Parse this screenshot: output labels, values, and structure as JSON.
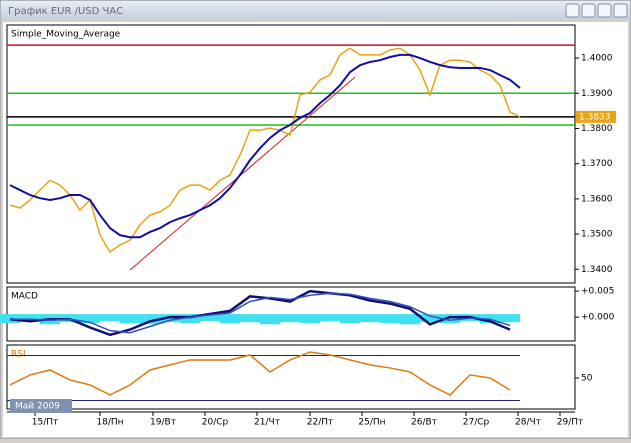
{
  "window": {
    "title": "График EUR /USD  ЧАС"
  },
  "main": {
    "label": "Simple_Moving_Average",
    "ylim": [
      1.3361,
      1.4094
    ],
    "yticks": [
      {
        "value": 1.34,
        "label": "1.3400"
      },
      {
        "value": 1.35,
        "label": "1.3500"
      },
      {
        "value": 1.36,
        "label": "1.3600"
      },
      {
        "value": 1.37,
        "label": "1.3700"
      },
      {
        "value": 1.38,
        "label": "1.3800"
      },
      {
        "value": 1.39,
        "label": "1.3900"
      },
      {
        "value": 1.4,
        "label": "1.4000"
      }
    ],
    "price": [
      1.3582,
      1.3574,
      1.3597,
      1.3625,
      1.3653,
      1.3639,
      1.3611,
      1.3568,
      1.3597,
      1.3497,
      1.3449,
      1.3469,
      1.3483,
      1.3526,
      1.3554,
      1.3563,
      1.3582,
      1.3625,
      1.3639,
      1.3639,
      1.3625,
      1.3653,
      1.3668,
      1.3724,
      1.3795,
      1.3795,
      1.3801,
      1.3795,
      1.3781,
      1.3895,
      1.3903,
      1.3938,
      1.3952,
      1.4009,
      1.4028,
      1.4009,
      1.4009,
      1.4009,
      1.4023,
      1.4028,
      1.4009,
      1.3966,
      1.3895,
      1.398,
      1.3994,
      1.3994,
      1.3989,
      1.3966,
      1.3952,
      1.3923,
      1.3847,
      1.3833
    ],
    "sma": [
      1.3639,
      1.3625,
      1.3611,
      1.3602,
      1.3597,
      1.3602,
      1.3611,
      1.3611,
      1.3597,
      1.3554,
      1.3517,
      1.3497,
      1.3491,
      1.3491,
      1.3506,
      1.3517,
      1.3534,
      1.3545,
      1.3554,
      1.3568,
      1.3582,
      1.3602,
      1.3631,
      1.3668,
      1.371,
      1.3744,
      1.3773,
      1.3795,
      1.381,
      1.383,
      1.3844,
      1.3872,
      1.3895,
      1.3923,
      1.396,
      1.398,
      1.3989,
      1.3994,
      1.4003,
      1.4009,
      1.4009,
      1.4,
      1.3989,
      1.398,
      1.3974,
      1.3972,
      1.3972,
      1.3972,
      1.3966,
      1.3952,
      1.3938,
      1.3915
    ],
    "levels": {
      "resistance": 1.4037,
      "upper": 1.39,
      "lower": 1.381
    },
    "current": 1.3833,
    "trend": [
      1.3398,
      1.3946
    ]
  },
  "macd": {
    "label": "MACD",
    "ylim": [
      -0.0044,
      0.0056
    ],
    "yticks": [
      {
        "value": 0.005,
        "label": "+0.005"
      },
      {
        "value": 0,
        "label": "+0.000"
      }
    ],
    "macd": [
      -0.0004,
      -0.0008,
      -0.0004,
      -0.0004,
      -0.002,
      -0.0034,
      -0.0024,
      -0.0008,
      0,
      0,
      0.0006,
      0.0012,
      0.004,
      0.0036,
      0.003,
      0.005,
      0.0046,
      0.0042,
      0.0032,
      0.0026,
      0.0016,
      -0.0014,
      0,
      0,
      -0.0008,
      -0.0024
    ],
    "signal": [
      -0.0004,
      -0.0004,
      -0.0006,
      -0.0004,
      -0.001,
      -0.0026,
      -0.003,
      -0.0018,
      -0.0006,
      0,
      0.0004,
      0.0008,
      0.003,
      0.0038,
      0.0034,
      0.0042,
      0.0046,
      0.0044,
      0.0036,
      0.003,
      0.002,
      0.0002,
      -0.0006,
      -0.0002,
      -0.0004,
      -0.0016
    ],
    "histogram": [
      -0.0006,
      -0.0002,
      -0.0008,
      -0.0004,
      -0.0006,
      -0.0002,
      -0.0006,
      -0.0008,
      -0.0004,
      -0.0006,
      -0.0002,
      -0.0006,
      -0.0004,
      -0.0008,
      -0.0004,
      -0.0006,
      -0.0002,
      -0.0006,
      -0.0004,
      -0.0006,
      -0.0008,
      -0.0004,
      -0.0006,
      -0.0002,
      -0.0006,
      -0.0004
    ]
  },
  "rsi": {
    "label": "RSI",
    "ylim": [
      23.3,
      78.4
    ],
    "yticks": [
      50
    ],
    "levels": [
      70,
      30
    ],
    "values": [
      43.8,
      52.7,
      57.1,
      48.2,
      43.8,
      34.9,
      43.8,
      57.1,
      61.6,
      66,
      66,
      66,
      70.4,
      55.3,
      66,
      73.1,
      70.4,
      66,
      61.6,
      58.9,
      55.3,
      43.8,
      34.9,
      52.7,
      50,
      39.3
    ]
  },
  "xaxis": {
    "labels": [
      "15/Пт",
      "18/Пн",
      "19/Вт",
      "20/Ср",
      "21/Чт",
      "22/Пт",
      "25/Пн",
      "26/Вт",
      "27/Ср",
      "28/Чт",
      "29/Пт"
    ],
    "period": "Май 2009"
  }
}
